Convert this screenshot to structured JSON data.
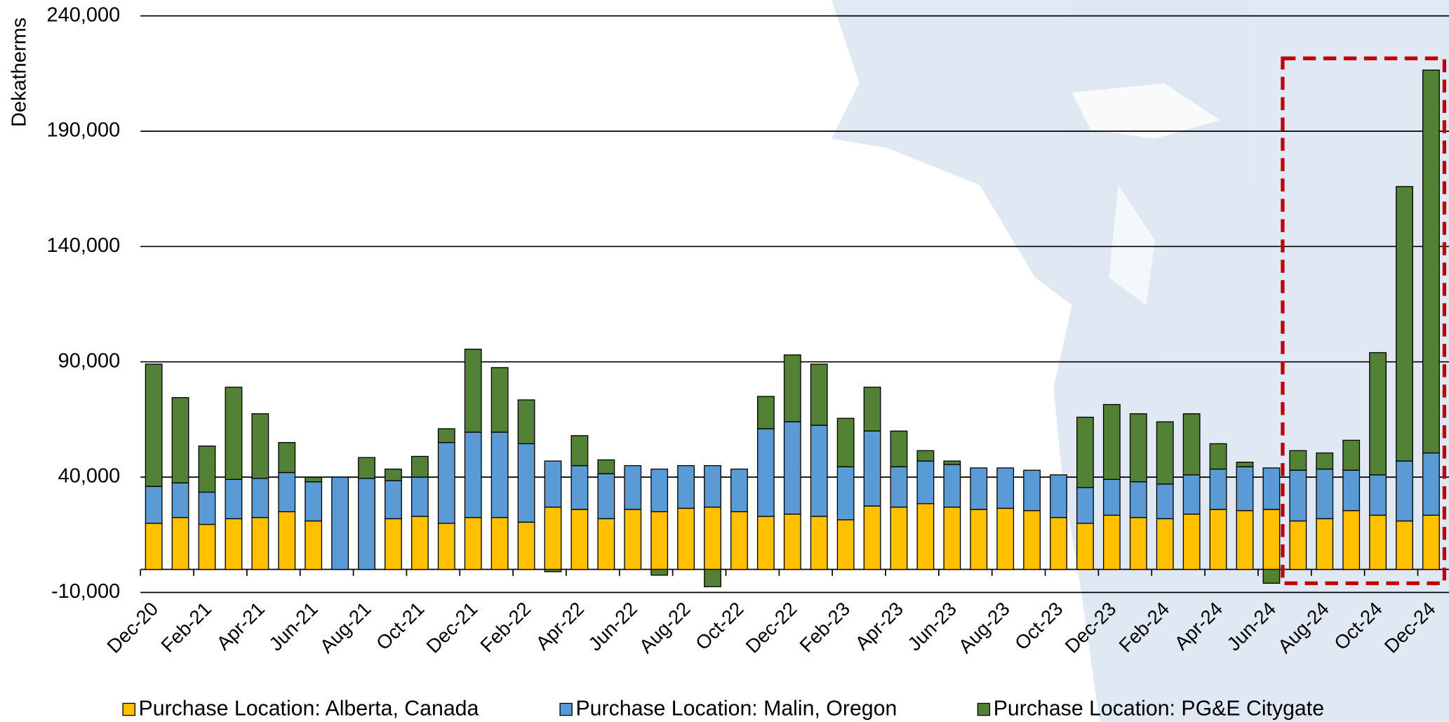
{
  "chart_data": {
    "type": "stacked-bar",
    "y_label": "Dekatherms",
    "categories": [
      "Dec-20",
      null,
      "Feb-21",
      null,
      "Apr-21",
      null,
      "Jun-21",
      null,
      "Aug-21",
      null,
      "Oct-21",
      null,
      "Dec-21",
      null,
      "Feb-22",
      null,
      "Apr-22",
      null,
      "Jun-22",
      null,
      "Aug-22",
      null,
      "Oct-22",
      null,
      "Dec-22",
      null,
      "Feb-23",
      null,
      "Apr-23",
      null,
      "Jun-23",
      null,
      "Aug-23",
      null,
      "Oct-23",
      null,
      "Dec-23",
      null,
      "Feb-24",
      null,
      "Apr-24",
      null,
      "Jun-24",
      null,
      "Aug-24",
      null,
      "Oct-24",
      null,
      "Dec-24"
    ],
    "series": [
      {
        "name": "Purchase Location: Alberta, Canada",
        "color": "#ffc000",
        "values": [
          20000,
          22500,
          19500,
          22000,
          22500,
          25000,
          21000,
          0,
          0,
          22000,
          23000,
          20000,
          22500,
          22500,
          20500,
          27000,
          26000,
          22000,
          26000,
          25000,
          26500,
          27000,
          25000,
          23000,
          24000,
          23000,
          21500,
          27500,
          27000,
          28500,
          27000,
          26000,
          26500,
          25500,
          22500,
          20000,
          23500,
          22500,
          22000,
          24000,
          26000,
          25500,
          26000,
          21000,
          22000,
          25500,
          23500,
          21000,
          23500
        ]
      },
      {
        "name": "Purchase Location: Malin, Oregon",
        "color": "#5b9bd5",
        "values": [
          16000,
          15000,
          14000,
          17000,
          17000,
          17000,
          17000,
          40000,
          39500,
          16500,
          17000,
          35000,
          37000,
          37000,
          34000,
          20000,
          19000,
          19500,
          19000,
          18500,
          18500,
          18000,
          18500,
          38000,
          40000,
          39500,
          23000,
          32500,
          17500,
          18500,
          18500,
          18000,
          17500,
          17500,
          18500,
          15500,
          15500,
          15500,
          15000,
          17000,
          17500,
          19000,
          18000,
          22000,
          21500,
          17500,
          17500,
          26000,
          27000
        ]
      },
      {
        "name": "Purchase Location: PG&E Citygate",
        "color": "#538135",
        "values": [
          53000,
          37000,
          20000,
          40000,
          28000,
          13000,
          2000,
          0,
          9000,
          5000,
          9000,
          6000,
          36000,
          28000,
          19000,
          -1000,
          13000,
          6000,
          0,
          -2500,
          0,
          -7500,
          0,
          14000,
          29000,
          26500,
          21000,
          19000,
          15500,
          4500,
          1500,
          0,
          0,
          0,
          0,
          30500,
          32500,
          29500,
          27000,
          26500,
          11000,
          2000,
          -6000,
          8500,
          7000,
          13000,
          53000,
          119000,
          166000
        ]
      }
    ],
    "ylim": [
      -10000,
      240000
    ],
    "yticks": [
      {
        "value": -10000,
        "label": "-10,000"
      },
      {
        "value": 40000,
        "label": "40,000"
      },
      {
        "value": 90000,
        "label": "90,000"
      },
      {
        "value": 140000,
        "label": "140,000"
      },
      {
        "value": 190000,
        "label": "190,000"
      },
      {
        "value": 240000,
        "label": "240,000"
      }
    ],
    "grid": true
  }
}
